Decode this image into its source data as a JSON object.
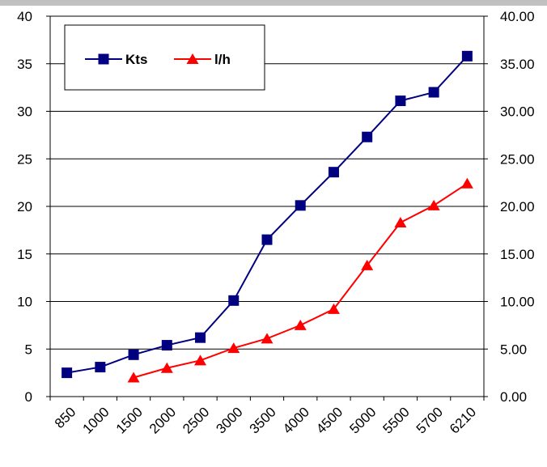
{
  "chart_data": {
    "type": "line",
    "categories": [
      "850",
      "1000",
      "1500",
      "2000",
      "2500",
      "3000",
      "3500",
      "4000",
      "4500",
      "5000",
      "5500",
      "5700",
      "6210"
    ],
    "series": [
      {
        "name": "Kts",
        "axis": "left",
        "color": "#000080",
        "marker": "square",
        "values": [
          2.5,
          3.1,
          4.4,
          5.4,
          6.2,
          10.1,
          16.5,
          20.1,
          23.6,
          27.3,
          31.1,
          32.0,
          35.8
        ]
      },
      {
        "name": "l/h",
        "axis": "right",
        "color": "#ff0000",
        "marker": "triangle",
        "values": [
          null,
          null,
          2.0,
          3.0,
          3.8,
          5.1,
          6.1,
          7.5,
          9.2,
          13.8,
          18.3,
          20.1,
          22.4
        ]
      }
    ],
    "y_left": {
      "ylim": [
        0,
        40
      ],
      "ticks": [
        "0",
        "5",
        "10",
        "15",
        "20",
        "25",
        "30",
        "35",
        "40"
      ]
    },
    "y_right": {
      "ylim": [
        0,
        40
      ],
      "ticks": [
        "0.00",
        "5.00",
        "10.00",
        "15.00",
        "20.00",
        "25.00",
        "30.00",
        "35.00",
        "40.00"
      ]
    },
    "grid": true,
    "legend_position": "top-left"
  }
}
